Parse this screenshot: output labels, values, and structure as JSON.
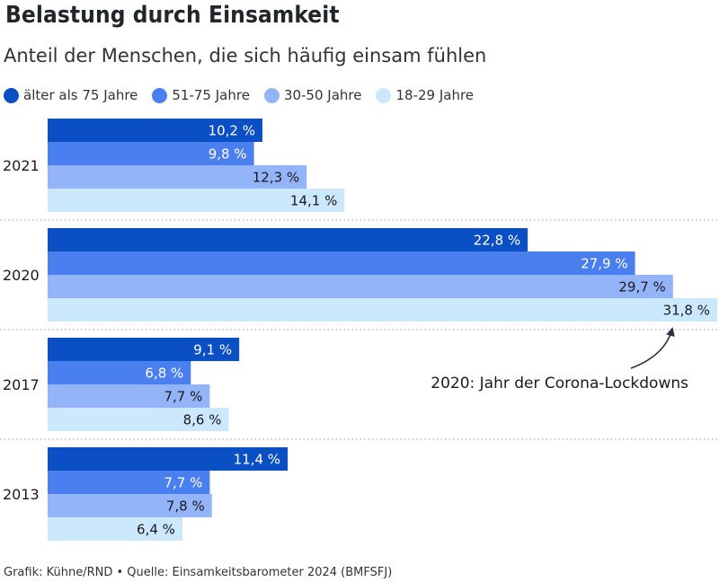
{
  "header": {
    "title": "Belastung durch Einsamkeit",
    "subtitle": "Anteil der Menschen, die sich häufig einsam fühlen"
  },
  "chart_data": {
    "type": "bar",
    "orientation": "horizontal",
    "categories": [
      "2021",
      "2020",
      "2017",
      "2013"
    ],
    "series": [
      {
        "name": "älter als 75 Jahre",
        "color": "#0b4fc4",
        "label_color": "#ffffff",
        "values": [
          10.2,
          22.8,
          9.1,
          11.4
        ],
        "labels": [
          "10,2 %",
          "22,8 %",
          "9,1 %",
          "11,4 %"
        ]
      },
      {
        "name": "51-75 Jahre",
        "color": "#4a7ff0",
        "label_color": "#ffffff",
        "values": [
          9.8,
          27.9,
          6.8,
          7.7
        ],
        "labels": [
          "9,8 %",
          "27,9 %",
          "6,8 %",
          "7,7 %"
        ]
      },
      {
        "name": "30-50 Jahre",
        "color": "#94b4fa",
        "label_color": "#1a1a1a",
        "values": [
          12.3,
          29.7,
          7.7,
          7.8
        ],
        "labels": [
          "12,3 %",
          "29,7 %",
          "7,7 %",
          "7,8 %"
        ]
      },
      {
        "name": "18-29 Jahre",
        "color": "#cce8fc",
        "label_color": "#1a1a1a",
        "values": [
          14.1,
          31.8,
          8.6,
          6.4
        ],
        "labels": [
          "14,1 %",
          "31,8 %",
          "8,6 %",
          "6,4 %"
        ]
      }
    ],
    "xlim": [
      0,
      31.8
    ],
    "legend_position": "top-left",
    "grid": false,
    "annotations": [
      {
        "text": "2020: Jahr der Corona-Lockdowns",
        "target_category": "2020",
        "target_series": "18-29 Jahre"
      }
    ]
  },
  "footer": {
    "source": "Grafik: Kühne/RND • Quelle: Einsamkeitsbarometer 2024 (BMFSFJ)"
  }
}
